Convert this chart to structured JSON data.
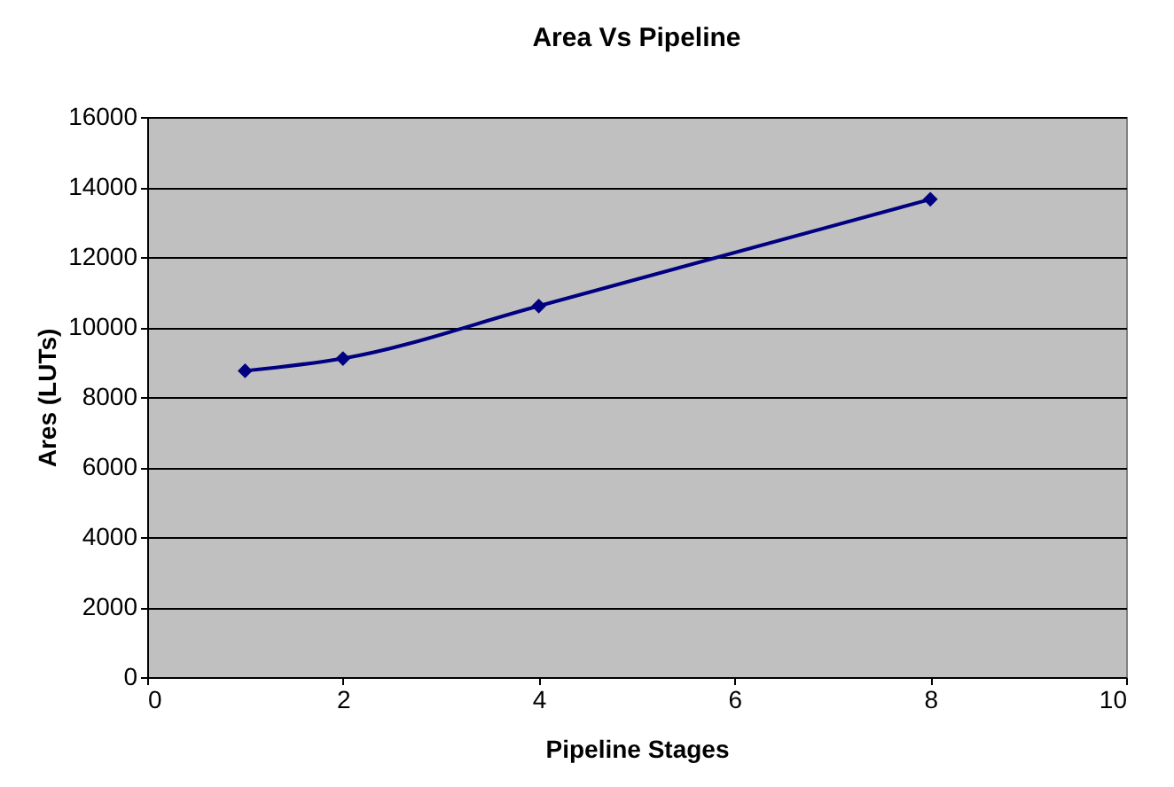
{
  "chart_data": {
    "type": "line",
    "title": "Area Vs Pipeline",
    "xlabel": "Pipeline Stages",
    "ylabel": "Ares (LUTs)",
    "x": [
      1,
      2,
      4,
      8
    ],
    "series": [
      {
        "color": "#000080",
        "values": [
          8750,
          9100,
          10600,
          13650
        ]
      }
    ],
    "xlim": [
      0,
      10
    ],
    "xticks": [
      0,
      2,
      4,
      6,
      8,
      10
    ],
    "ylim": [
      0,
      16000
    ],
    "yticks": [
      0,
      2000,
      4000,
      6000,
      8000,
      10000,
      12000,
      14000,
      16000
    ],
    "grid": "y",
    "marker": "diamond",
    "line_style": "solid"
  }
}
